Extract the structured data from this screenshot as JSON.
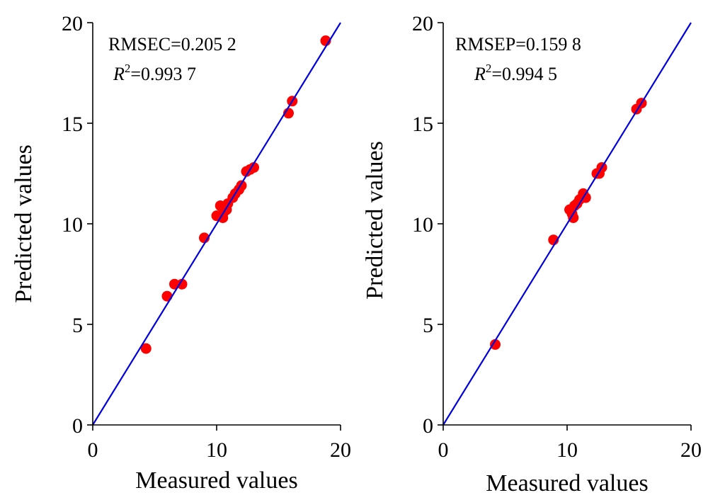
{
  "chart_data": [
    {
      "type": "scatter",
      "xlabel": "Measured values",
      "ylabel": "Predicted values",
      "xlim": [
        0,
        20
      ],
      "ylim": [
        0,
        20
      ],
      "xticks": [
        "0",
        "10",
        "20"
      ],
      "yticks": [
        "0",
        "5",
        "10",
        "15",
        "20"
      ],
      "xtick_values": [
        0,
        10,
        20
      ],
      "ytick_values": [
        0,
        5,
        10,
        15,
        20
      ],
      "annotation_line1": "RMSEC=0.205 2",
      "annotation_r_symbol": "R",
      "annotation_r_sup": "2",
      "annotation_r_value": "=0.993 7",
      "grid": false,
      "point_color": "#ff0000",
      "line_color": "#0000dd",
      "reference_line": {
        "from": [
          0,
          0
        ],
        "to": [
          20,
          20
        ]
      },
      "x": [
        4.3,
        6.0,
        6.6,
        7.2,
        9.0,
        10.0,
        10.3,
        10.5,
        10.6,
        10.8,
        10.9,
        11.3,
        11.5,
        11.8,
        12.0,
        12.4,
        12.7,
        13.0,
        15.8,
        16.1,
        18.8
      ],
      "y": [
        3.8,
        6.4,
        7.0,
        7.0,
        9.3,
        10.4,
        10.9,
        10.3,
        10.6,
        10.7,
        11.0,
        11.3,
        11.5,
        11.7,
        11.9,
        12.6,
        12.7,
        12.8,
        15.5,
        16.1,
        19.1
      ]
    },
    {
      "type": "scatter",
      "xlabel": "Measured values",
      "ylabel": "Predicted values",
      "xlim": [
        0,
        20
      ],
      "ylim": [
        0,
        20
      ],
      "xticks": [
        "0",
        "10",
        "20"
      ],
      "yticks": [
        "0",
        "5",
        "10",
        "15",
        "20"
      ],
      "xtick_values": [
        0,
        10,
        20
      ],
      "ytick_values": [
        0,
        5,
        10,
        15,
        20
      ],
      "annotation_line1": "RMSEP=0.159 8",
      "annotation_r_symbol": "R",
      "annotation_r_sup": "2",
      "annotation_r_value": "=0.994 5",
      "grid": false,
      "point_color": "#ff0000",
      "line_color": "#0000dd",
      "reference_line": {
        "from": [
          0,
          0
        ],
        "to": [
          20,
          20
        ]
      },
      "x": [
        4.2,
        8.9,
        10.2,
        10.4,
        10.5,
        10.6,
        10.8,
        11.0,
        11.3,
        11.5,
        12.4,
        12.6,
        12.8,
        15.6,
        16.0
      ],
      "y": [
        4.0,
        9.2,
        10.7,
        10.5,
        10.3,
        10.9,
        11.0,
        11.2,
        11.5,
        11.3,
        12.5,
        12.5,
        12.8,
        15.7,
        16.0
      ]
    }
  ]
}
